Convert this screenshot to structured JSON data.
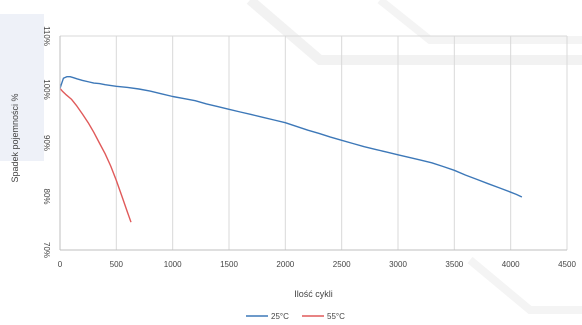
{
  "chart_data": {
    "type": "line",
    "xlabel": "Ilość cykli",
    "ylabel": "Spadek pojemności %",
    "xlim": [
      0,
      4500
    ],
    "ylim": [
      70,
      110
    ],
    "x_ticks": [
      "0",
      "500",
      "1000",
      "1500",
      "2000",
      "2500",
      "3000",
      "3500",
      "4000",
      "4500"
    ],
    "y_ticks": [
      "70%",
      "80%",
      "90%",
      "100%",
      "110%"
    ],
    "grid": "vertical",
    "legend_position": "bottom-center",
    "series": [
      {
        "name": "25°C",
        "color": "#3d78b8",
        "x": [
          0,
          30,
          60,
          90,
          120,
          150,
          200,
          260,
          300,
          350,
          400,
          500,
          600,
          700,
          800,
          900,
          1000,
          1100,
          1200,
          1300,
          1400,
          1500,
          1600,
          1700,
          1800,
          1900,
          2000,
          2100,
          2200,
          2300,
          2400,
          2500,
          2600,
          2700,
          2800,
          2900,
          3000,
          3100,
          3200,
          3300,
          3400,
          3500,
          3600,
          3700,
          3800,
          3900,
          4000,
          4050,
          4100
        ],
        "y": [
          100.2,
          102.1,
          102.4,
          102.4,
          102.2,
          102.0,
          101.7,
          101.4,
          101.2,
          101.1,
          100.9,
          100.6,
          100.4,
          100.1,
          99.7,
          99.2,
          98.7,
          98.3,
          97.9,
          97.3,
          96.8,
          96.3,
          95.8,
          95.3,
          94.8,
          94.3,
          93.8,
          93.1,
          92.4,
          91.8,
          91.1,
          90.5,
          89.9,
          89.3,
          88.8,
          88.3,
          87.8,
          87.3,
          86.8,
          86.3,
          85.6,
          84.9,
          84.0,
          83.2,
          82.4,
          81.6,
          80.8,
          80.4,
          79.9
        ]
      },
      {
        "name": "55°C",
        "color": "#e05a5a",
        "x": [
          0,
          20,
          50,
          100,
          150,
          200,
          250,
          300,
          350,
          400,
          450,
          500,
          550,
          600,
          630
        ],
        "y": [
          100.2,
          99.7,
          99.1,
          98.2,
          96.9,
          95.4,
          93.8,
          92.0,
          90.0,
          88.0,
          85.7,
          83.0,
          80.0,
          77.0,
          75.2
        ]
      }
    ]
  }
}
